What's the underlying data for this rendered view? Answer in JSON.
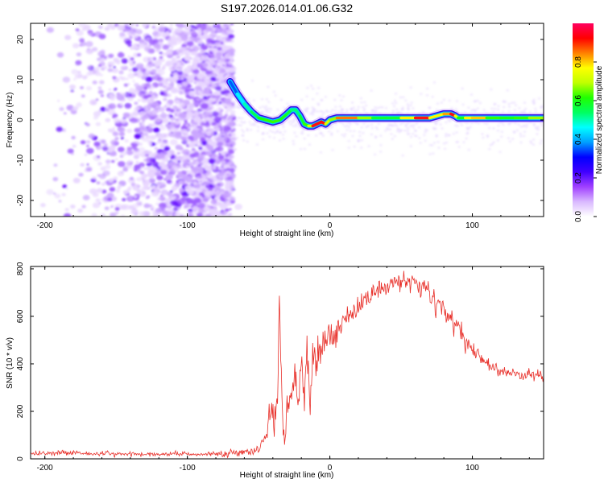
{
  "figure": {
    "title": "S197.2026.014.01.06.G32"
  },
  "chart_data": [
    {
      "type": "heatmap",
      "title": "S197.2026.014.01.06.G32",
      "xlabel": "Height of straight line (km)",
      "ylabel": "Frequency (Hz)",
      "xlim": [
        -210,
        150
      ],
      "ylim": [
        -24,
        24
      ],
      "xticks": [
        -200,
        -100,
        0,
        100
      ],
      "yticks": [
        -20,
        -10,
        0,
        10,
        20
      ],
      "xtick_labels": [
        "-200",
        "-100",
        "0",
        "100"
      ],
      "ytick_labels": [
        "-20",
        "-10",
        "0",
        "10",
        "20"
      ],
      "grid": false,
      "noise_region": {
        "x_from": -210,
        "x_to": -68,
        "amplitude_range": [
          0.0,
          0.15
        ]
      },
      "doppler_trace": {
        "x": [
          -70,
          -65,
          -60,
          -55,
          -50,
          -45,
          -40,
          -35,
          -30,
          -27,
          -24,
          -21,
          -18,
          -15,
          -12,
          -9,
          -6,
          -3,
          0,
          5,
          10,
          20,
          30,
          40,
          50,
          60,
          70,
          80,
          85,
          88,
          90,
          95,
          100,
          110,
          120,
          130,
          140,
          150
        ],
        "freq": [
          9.5,
          6.5,
          4,
          2,
          0.5,
          0,
          -0.5,
          0,
          1.5,
          2.5,
          2.5,
          1,
          -1,
          -1.5,
          -1.5,
          -1,
          -0.5,
          -1,
          0,
          0.5,
          0.5,
          0.5,
          0.5,
          0.5,
          0.5,
          0.5,
          0.5,
          1.5,
          1.5,
          1,
          0.5,
          0.5,
          0.5,
          0.5,
          0.5,
          0.5,
          0.5,
          0.5
        ],
        "amplitude": [
          0.3,
          0.4,
          0.5,
          0.5,
          0.6,
          0.6,
          0.65,
          0.6,
          0.6,
          0.55,
          0.5,
          0.55,
          0.6,
          0.65,
          0.8,
          0.9,
          0.95,
          0.85,
          0.6,
          0.75,
          0.95,
          0.75,
          0.6,
          0.55,
          0.6,
          0.95,
          0.85,
          0.7,
          0.95,
          0.9,
          0.6,
          0.6,
          0.95,
          0.65,
          0.6,
          0.6,
          0.65,
          0.7
        ]
      },
      "colorbar": {
        "label": "Normalized spectral amplitude",
        "range": [
          0,
          1
        ],
        "ticks": [
          0.0,
          0.2,
          0.4,
          0.6,
          0.8
        ],
        "tick_labels": [
          "0.0",
          "0.2",
          "0.4",
          "0.6",
          "0.8"
        ],
        "colors": [
          "#ffffff",
          "#d9b8ff",
          "#a040ff",
          "#4000ff",
          "#0000ff",
          "#00a0ff",
          "#00ffff",
          "#00ff60",
          "#20ff00",
          "#c0ff00",
          "#ffff00",
          "#ff8000",
          "#ff0000",
          "#ff0060"
        ]
      }
    },
    {
      "type": "line",
      "title": "",
      "xlabel": "Height of straight line (km)",
      "ylabel": "SNR (10 * v/v)",
      "xlim": [
        -210,
        150
      ],
      "ylim": [
        0,
        810
      ],
      "xticks": [
        -200,
        -100,
        0,
        100
      ],
      "yticks": [
        0,
        200,
        400,
        600,
        800
      ],
      "xtick_labels": [
        "-200",
        "-100",
        "0",
        "100"
      ],
      "ytick_labels": [
        "0",
        "200",
        "400",
        "600",
        "800"
      ],
      "grid": false,
      "series": [
        {
          "name": "SNR",
          "color": "#e8302a",
          "x": [
            -210,
            -180,
            -150,
            -120,
            -90,
            -75,
            -60,
            -52,
            -48,
            -44,
            -41,
            -39,
            -37,
            -35,
            -34,
            -33,
            -32,
            -30,
            -28,
            -26,
            -24,
            -22,
            -20,
            -18,
            -16,
            -14,
            -12,
            -10,
            -5,
            0,
            10,
            20,
            30,
            40,
            50,
            60,
            70,
            80,
            90,
            100,
            110,
            120,
            130,
            140,
            150
          ],
          "y": [
            20,
            25,
            20,
            20,
            20,
            22,
            25,
            35,
            55,
            120,
            200,
            150,
            220,
            560,
            300,
            170,
            80,
            210,
            250,
            320,
            360,
            230,
            420,
            280,
            480,
            210,
            470,
            370,
            480,
            500,
            580,
            640,
            700,
            730,
            755,
            745,
            710,
            630,
            540,
            460,
            400,
            370,
            355,
            350,
            350
          ],
          "noise": [
            5,
            6,
            5,
            5,
            5,
            8,
            8,
            10,
            15,
            30,
            40,
            40,
            40,
            30,
            40,
            40,
            30,
            40,
            40,
            50,
            50,
            50,
            60,
            50,
            60,
            50,
            60,
            50,
            40,
            35,
            30,
            25,
            25,
            25,
            25,
            25,
            25,
            25,
            20,
            18,
            15,
            12,
            12,
            12,
            12
          ]
        }
      ],
      "annotations": [
        {
          "x": -33,
          "y": 650,
          "label": ""
        }
      ]
    }
  ]
}
